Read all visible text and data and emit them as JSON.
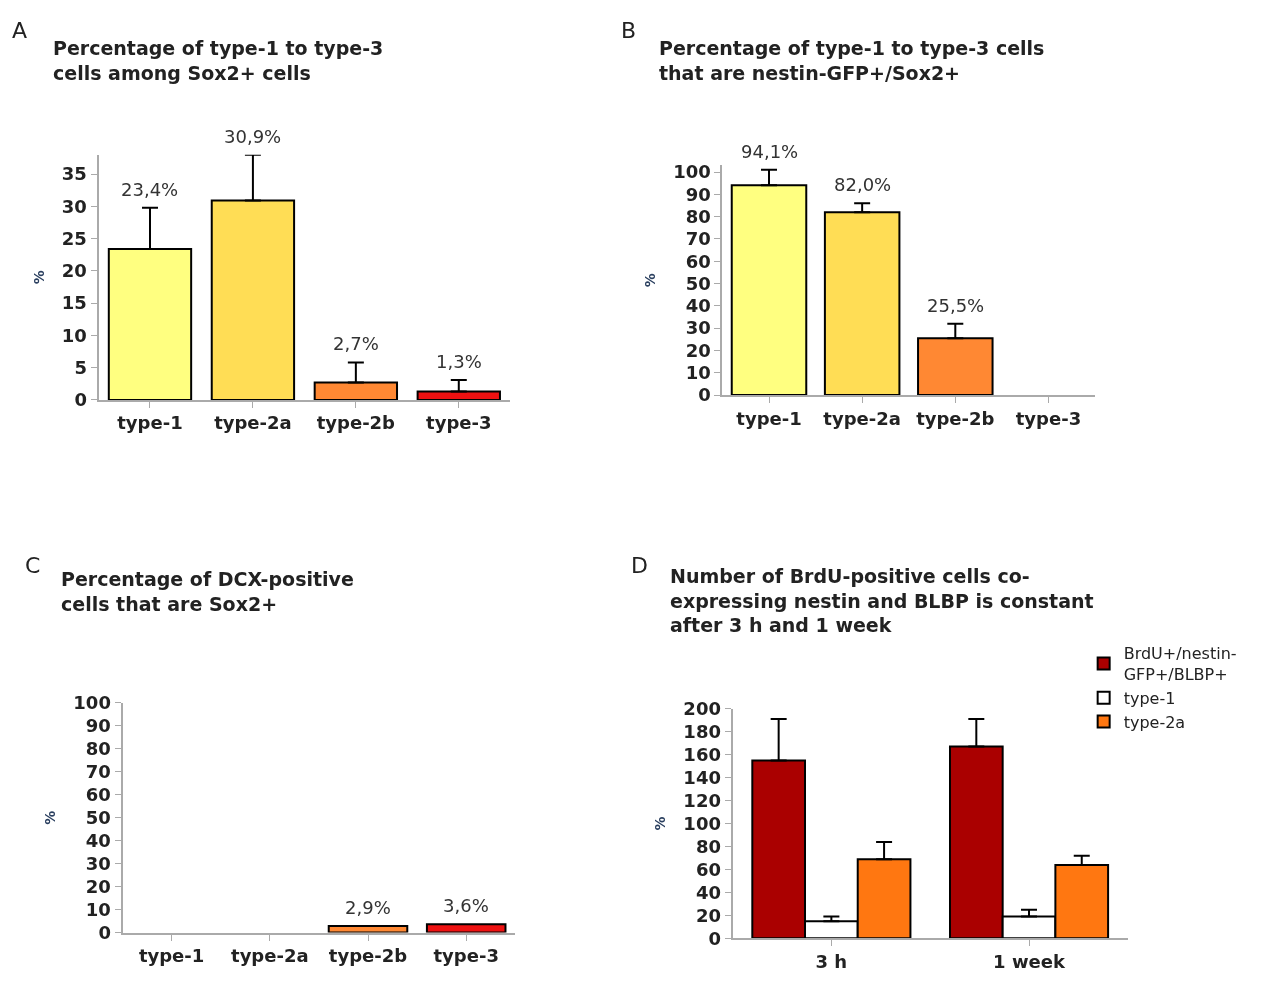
{
  "chart_data": [
    {
      "type": "bar",
      "title": "Percentage of type-1 to type-3 cells among Sox2+ cells",
      "ylabel": "%",
      "annotations": [
        "A"
      ],
      "categories": [
        "type-1",
        "type-2a",
        "type-2b",
        "type-3"
      ],
      "values": [
        23.4,
        30.9,
        2.7,
        1.3
      ],
      "colors": [
        "#ffff80",
        "#ffdd55",
        "#ff8833",
        "#ee1111"
      ],
      "errors": [
        [
          23.4,
          29.8
        ],
        [
          30.9,
          38
        ],
        [
          2.7,
          5.8
        ],
        [
          1.3,
          3.1
        ]
      ],
      "value_labels": [
        "23,4%",
        "30,9%",
        "2,7%",
        "1,3%"
      ],
      "ylim": [
        0,
        38
      ],
      "yticks": [
        0,
        5,
        10,
        15,
        20,
        25,
        30,
        35
      ]
    },
    {
      "type": "bar",
      "title": "Percentage of type-1 to type-3 cells that are nestin-GFP+/Sox2+",
      "ylabel": "%",
      "annotations": [
        "B"
      ],
      "categories": [
        "type-1",
        "type-2a",
        "type-2b",
        "type-3"
      ],
      "values": [
        94.1,
        82.0,
        25.5,
        null
      ],
      "colors": [
        "#ffff80",
        "#ffdd55",
        "#ff8833",
        "#ee1111"
      ],
      "errors": [
        [
          94.1,
          101
        ],
        [
          82.0,
          86
        ],
        [
          25.5,
          32
        ],
        null
      ],
      "value_labels": [
        "94,1%",
        "82,0%",
        "25,5%",
        null
      ],
      "ylim": [
        0,
        103
      ],
      "yticks": [
        0,
        10,
        20,
        30,
        40,
        50,
        60,
        70,
        80,
        90,
        100
      ]
    },
    {
      "type": "bar",
      "title": "Percentage of DCX-positive cells that are Sox2+",
      "ylabel": "%",
      "annotations": [
        "C"
      ],
      "categories": [
        "type-1",
        "type-2a",
        "type-2b",
        "type-3"
      ],
      "values": [
        null,
        null,
        2.9,
        3.6
      ],
      "colors": [
        "#ffff80",
        "#ffdd55",
        "#ff8833",
        "#ee1111"
      ],
      "value_labels": [
        null,
        null,
        "2,9%",
        "3,6%"
      ],
      "ylim": [
        0,
        100
      ],
      "yticks": [
        0,
        10,
        20,
        30,
        40,
        50,
        60,
        70,
        80,
        90,
        100
      ]
    },
    {
      "type": "bar",
      "title": "Number of BrdU-positive cells co-expressing nestin and BLBP is constant after 3 h and 1 week",
      "ylabel": "%",
      "annotations": [
        "D"
      ],
      "categories": [
        "3 h",
        "1 week"
      ],
      "series": [
        {
          "name": "BrdU+/nestin-GFP+/BLBP+",
          "color": "#aa0000",
          "values": [
            155,
            167
          ],
          "errors": [
            [
              155,
              191
            ],
            [
              167,
              191
            ]
          ]
        },
        {
          "name": "type-1",
          "color": "#ffffff",
          "values": [
            15,
            19
          ],
          "errors": [
            [
              15,
              19
            ],
            [
              19,
              25
            ]
          ]
        },
        {
          "name": "type-2a",
          "color": "#ff7711",
          "values": [
            69,
            64
          ],
          "errors": [
            [
              69,
              84
            ],
            [
              64,
              72
            ]
          ]
        }
      ],
      "ylim": [
        0,
        200
      ],
      "yticks": [
        0,
        20,
        40,
        60,
        80,
        100,
        120,
        140,
        160,
        180,
        200
      ],
      "legend": "top right"
    }
  ]
}
